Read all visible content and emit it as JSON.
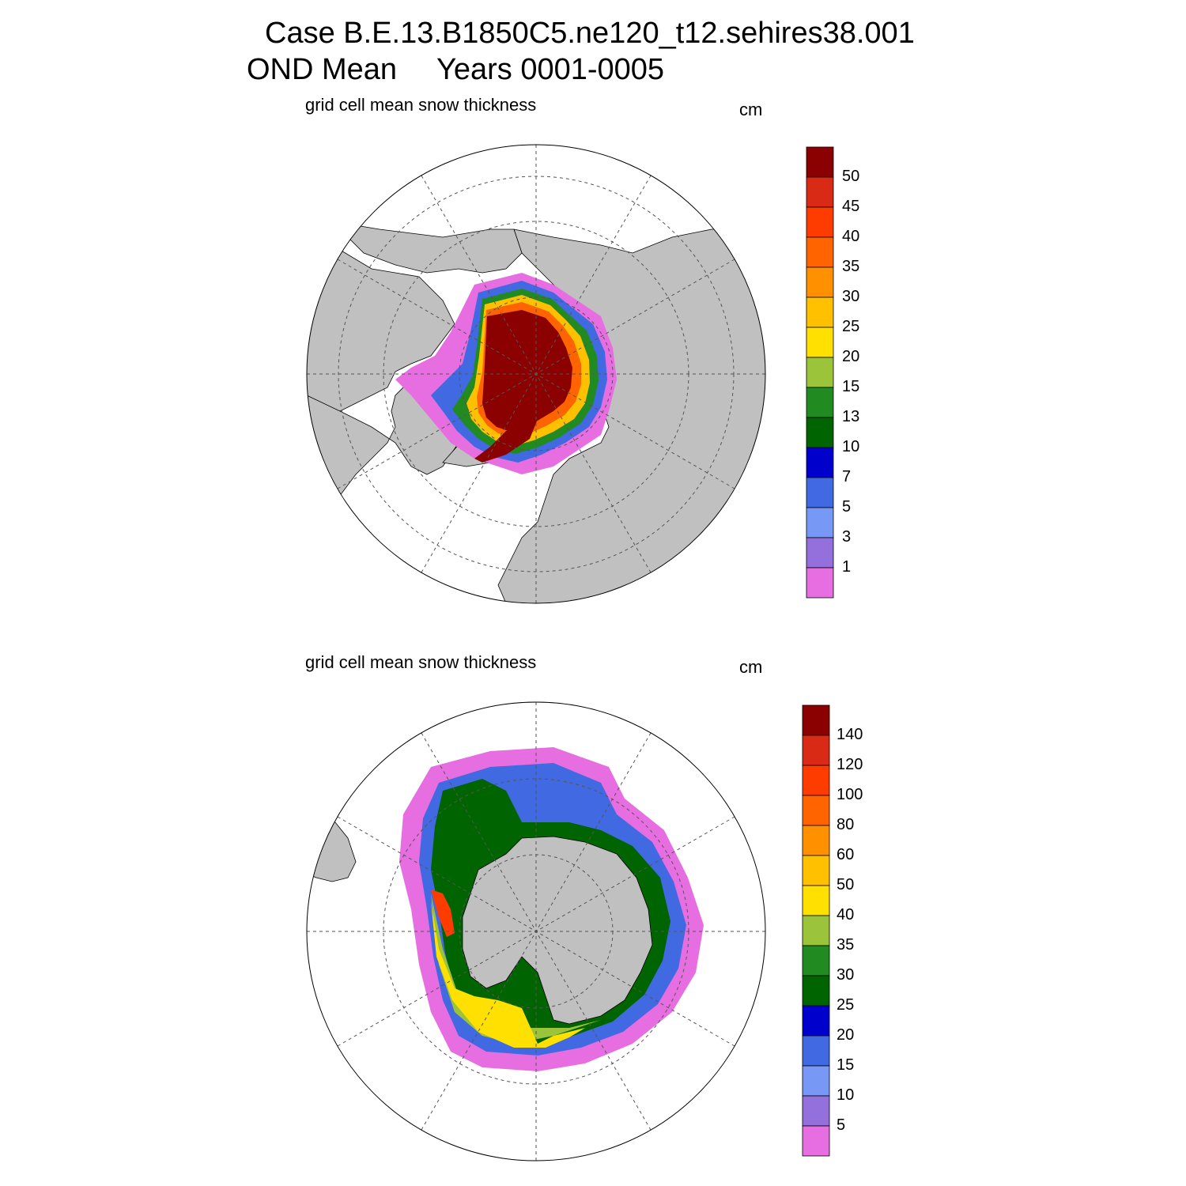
{
  "figure": {
    "title_line1": "Case B.E.13.B1850C5.ne120_t12.sehires38.001",
    "title_line2_period": "OND Mean",
    "title_line2_years": "Years 0001-0005"
  },
  "colors": {
    "land": "#c0c0c0",
    "ocean": "#ffffff",
    "outline": "#000000",
    "grid": "#555555"
  },
  "panels": [
    {
      "id": "north",
      "hemisphere": "north",
      "title": "grid cell mean snow thickness",
      "units": "cm",
      "colorbar": {
        "labels": [
          "50",
          "45",
          "40",
          "35",
          "30",
          "25",
          "20",
          "15",
          "13",
          "10",
          "7",
          "5",
          "3",
          "1"
        ],
        "colors": [
          "#8b0000",
          "#d82a14",
          "#ff3c00",
          "#ff6400",
          "#ff9100",
          "#ffc000",
          "#ffe000",
          "#9bc43a",
          "#218b21",
          "#006400",
          "#0000cd",
          "#4169e1",
          "#7799f5",
          "#9370db",
          "#e66ee0"
        ]
      }
    },
    {
      "id": "south",
      "hemisphere": "south",
      "title": "grid cell mean snow thickness",
      "units": "cm",
      "colorbar": {
        "labels": [
          "140",
          "120",
          "100",
          "80",
          "60",
          "50",
          "40",
          "35",
          "30",
          "25",
          "20",
          "15",
          "10",
          "5"
        ],
        "colors": [
          "#8b0000",
          "#d82a14",
          "#ff3c00",
          "#ff6400",
          "#ff9100",
          "#ffc000",
          "#ffe000",
          "#9bc43a",
          "#218b21",
          "#006400",
          "#0000cd",
          "#4169e1",
          "#7799f5",
          "#9370db",
          "#e66ee0"
        ]
      }
    }
  ]
}
